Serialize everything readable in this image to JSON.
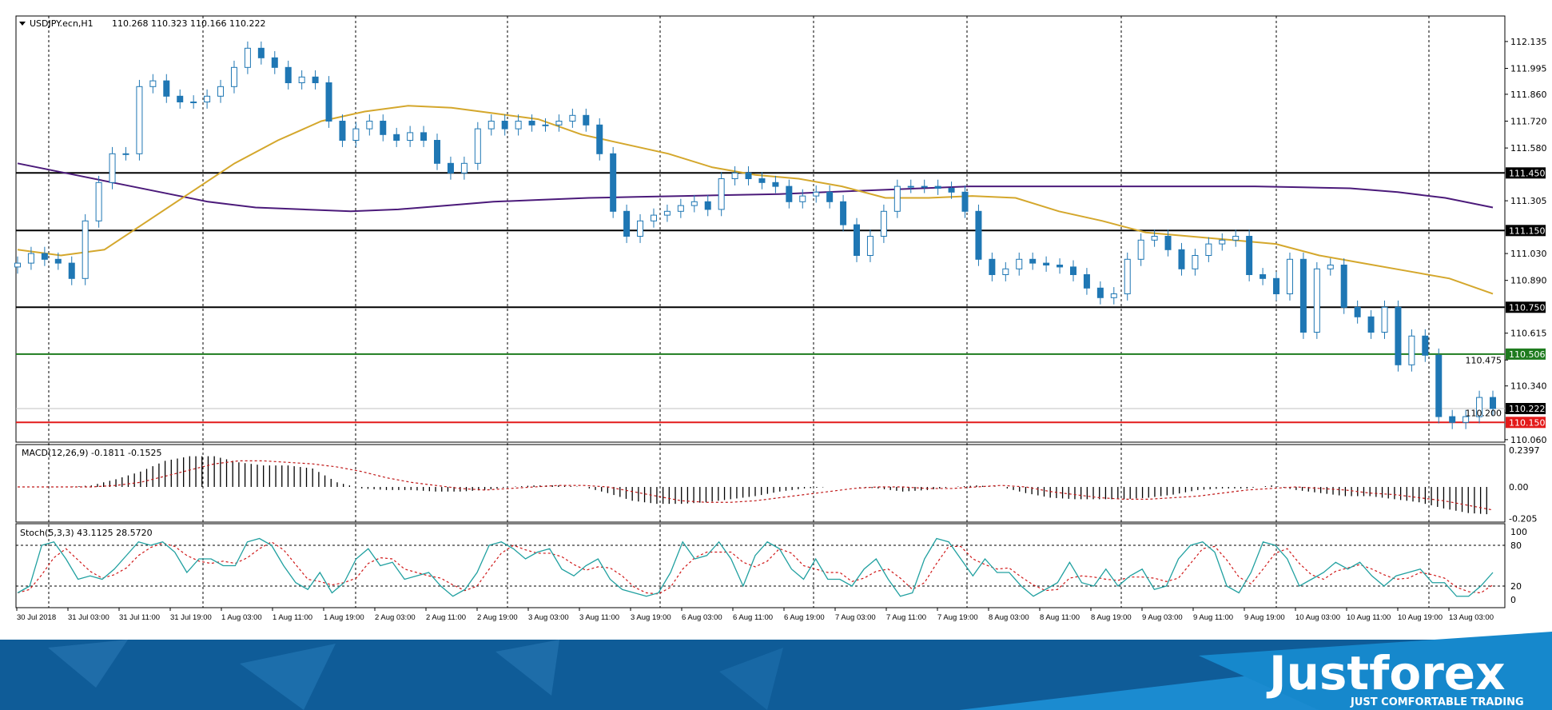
{
  "chart_data": [
    {
      "type": "candlestick",
      "title": "USDJPY.ecn,H1",
      "ohlc_readout": "110.268 110.323 110.166 110.222",
      "ylim": [
        110.047,
        112.268
      ],
      "close": [
        110.98,
        111.03,
        111.0,
        110.98,
        110.9,
        111.2,
        111.4,
        111.55,
        111.55,
        111.9,
        111.93,
        111.85,
        111.82,
        111.82,
        111.85,
        111.9,
        112.0,
        112.1,
        112.05,
        112.0,
        111.92,
        111.95,
        111.92,
        111.72,
        111.62,
        111.68,
        111.72,
        111.65,
        111.62,
        111.66,
        111.62,
        111.5,
        111.45,
        111.5,
        111.68,
        111.72,
        111.68,
        111.72,
        111.7,
        111.7,
        111.72,
        111.75,
        111.7,
        111.55,
        111.25,
        111.12,
        111.2,
        111.23,
        111.25,
        111.28,
        111.3,
        111.26,
        111.42,
        111.45,
        111.42,
        111.4,
        111.38,
        111.3,
        111.33,
        111.35,
        111.3,
        111.18,
        111.02,
        111.12,
        111.25,
        111.38,
        111.38,
        111.38,
        111.37,
        111.35,
        111.25,
        111.0,
        110.92,
        110.95,
        111.0,
        110.98,
        110.97,
        110.96,
        110.92,
        110.85,
        110.8,
        110.82,
        111.0,
        111.1,
        111.12,
        111.05,
        110.95,
        111.02,
        111.08,
        111.1,
        111.12,
        110.92,
        110.9,
        110.82,
        111.0,
        110.62,
        110.95,
        110.97,
        110.75,
        110.7,
        110.62,
        110.75,
        110.45,
        110.6,
        110.5,
        110.18,
        110.15,
        110.18,
        110.28,
        110.222
      ],
      "ma_fast": [
        111.05,
        111.02,
        111.05,
        111.2,
        111.35,
        111.5,
        111.62,
        111.72,
        111.77,
        111.8,
        111.79,
        111.76,
        111.73,
        111.65,
        111.6,
        111.55,
        111.48,
        111.44,
        111.42,
        111.38,
        111.32,
        111.32,
        111.33,
        111.32,
        111.25,
        111.2,
        111.14,
        111.12,
        111.1,
        111.08,
        111.02,
        110.98,
        110.94,
        110.9,
        110.82
      ],
      "ma_slow": [
        111.5,
        111.45,
        111.4,
        111.35,
        111.3,
        111.27,
        111.26,
        111.25,
        111.26,
        111.28,
        111.3,
        111.31,
        111.32,
        111.325,
        111.33,
        111.335,
        111.34,
        111.35,
        111.36,
        111.37,
        111.38,
        111.38,
        111.38,
        111.38,
        111.38,
        111.38,
        111.38,
        111.375,
        111.37,
        111.35,
        111.32,
        111.27
      ],
      "colors": {
        "bull_fill": "#ffffff",
        "bear_fill": "#1f77b4",
        "candle_outline": "#1f77b4",
        "ma_fast": "#d4a72c",
        "ma_slow": "#4b1a7a"
      },
      "levels": [
        {
          "value": "111.450",
          "color": "#000000"
        },
        {
          "value": "111.150",
          "color": "#000000"
        },
        {
          "value": "110.750",
          "color": "#000000"
        },
        {
          "value": "110.506",
          "color": "#1e7b1e"
        },
        {
          "value": "110.222",
          "color": "#c0c0c0",
          "label_bg": "#000000"
        },
        {
          "value": "110.150",
          "color": "#e31a1a"
        }
      ],
      "y_ticks": [
        "112.135",
        "111.995",
        "111.860",
        "111.720",
        "111.580",
        "111.305",
        "111.030",
        "110.890",
        "110.615",
        "110.475",
        "110.340",
        "110.200",
        "110.060"
      ],
      "grid": "vertical dashed"
    },
    {
      "type": "bar",
      "title": "MACD(12,26,9) -0.1811 -0.1525",
      "ylim": [
        -0.229,
        0.276
      ],
      "y_ticks": [
        "0.2397",
        "0.00",
        "-0.205"
      ],
      "histogram": [
        0.0,
        0.0,
        0.0,
        0.01,
        0.05,
        0.1,
        0.17,
        0.2,
        0.2,
        0.16,
        0.14,
        0.14,
        0.12,
        0.03,
        -0.01,
        -0.02,
        -0.02,
        -0.03,
        -0.03,
        -0.02,
        0.0,
        0.01,
        0.01,
        0.0,
        -0.04,
        -0.09,
        -0.11,
        -0.11,
        -0.1,
        -0.08,
        -0.06,
        -0.03,
        -0.01,
        0.0,
        0.0,
        -0.01,
        -0.03,
        -0.02,
        0.0,
        0.01,
        0.0,
        -0.04,
        -0.07,
        -0.08,
        -0.08,
        -0.08,
        -0.07,
        -0.05,
        -0.02,
        -0.01,
        -0.01,
        0.01,
        -0.02,
        -0.04,
        -0.06,
        -0.06,
        -0.08,
        -0.1,
        -0.14,
        -0.17,
        -0.18
      ],
      "signal": [
        0,
        0,
        0,
        0,
        0.01,
        0.03,
        0.07,
        0.11,
        0.15,
        0.17,
        0.17,
        0.16,
        0.15,
        0.13,
        0.1,
        0.06,
        0.03,
        0.01,
        -0.01,
        -0.02,
        -0.01,
        0,
        0.01,
        0.01,
        0,
        -0.03,
        -0.06,
        -0.09,
        -0.1,
        -0.1,
        -0.09,
        -0.07,
        -0.05,
        -0.03,
        -0.01,
        0,
        0,
        -0.01,
        -0.01,
        0,
        0.01,
        0,
        -0.03,
        -0.05,
        -0.07,
        -0.08,
        -0.08,
        -0.07,
        -0.06,
        -0.04,
        -0.02,
        -0.01,
        0,
        -0.01,
        -0.02,
        -0.04,
        -0.05,
        -0.07,
        -0.09,
        -0.12,
        -0.15
      ],
      "colors": {
        "histogram": "#000000",
        "signal": "#c01818"
      }
    },
    {
      "type": "line",
      "title": "Stoch(5,3,3) 43.1125 28.5720",
      "ylim": [
        0,
        100
      ],
      "y_ticks": [
        "100",
        "80",
        "20",
        "0"
      ],
      "levels": [
        80,
        20
      ],
      "main": [
        10,
        20,
        80,
        85,
        60,
        30,
        35,
        30,
        45,
        65,
        85,
        80,
        85,
        70,
        40,
        60,
        60,
        50,
        50,
        85,
        90,
        80,
        50,
        25,
        15,
        40,
        10,
        25,
        60,
        75,
        50,
        55,
        30,
        35,
        40,
        20,
        5,
        15,
        40,
        80,
        85,
        75,
        60,
        70,
        75,
        45,
        35,
        50,
        60,
        30,
        15,
        10,
        5,
        10,
        40,
        85,
        60,
        65,
        85,
        60,
        20,
        65,
        85,
        75,
        45,
        30,
        60,
        30,
        30,
        20,
        45,
        60,
        30,
        5,
        10,
        60,
        90,
        85,
        60,
        35,
        60,
        40,
        40,
        20,
        5,
        15,
        25,
        55,
        25,
        20,
        45,
        20,
        35,
        45,
        15,
        20,
        60,
        80,
        85,
        70,
        20,
        10,
        40,
        85,
        80,
        60,
        20,
        30,
        40,
        55,
        45,
        55,
        35,
        20,
        35,
        40,
        45,
        25,
        25,
        5,
        5,
        20,
        40
      ],
      "colors": {
        "main": "#20a0a0",
        "signal": "#d01818"
      }
    }
  ],
  "x_ticks": [
    "30 Jul 2018",
    "31 Jul 03:00",
    "31 Jul 11:00",
    "31 Jul 19:00",
    "1 Aug 03:00",
    "1 Aug 11:00",
    "1 Aug 19:00",
    "2 Aug 03:00",
    "2 Aug 11:00",
    "2 Aug 19:00",
    "3 Aug 03:00",
    "3 Aug 11:00",
    "3 Aug 19:00",
    "6 Aug 03:00",
    "6 Aug 11:00",
    "6 Aug 19:00",
    "7 Aug 03:00",
    "7 Aug 11:00",
    "7 Aug 19:00",
    "8 Aug 03:00",
    "8 Aug 11:00",
    "8 Aug 19:00",
    "9 Aug 03:00",
    "9 Aug 11:00",
    "9 Aug 19:00",
    "10 Aug 03:00",
    "10 Aug 11:00",
    "10 Aug 19:00",
    "13 Aug 03:00"
  ],
  "branding": {
    "logo": "Justforex",
    "tagline": "JUST COMFORTABLE TRADING",
    "colors": {
      "dark": "#0f5c98",
      "light": "#1b8bd0"
    }
  }
}
